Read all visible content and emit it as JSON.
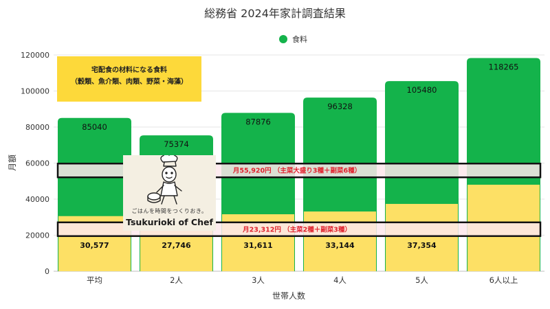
{
  "chart_data": {
    "type": "bar",
    "stacked": true,
    "title": "総務省 2024年家計調査結果",
    "xlabel": "世帯人数",
    "ylabel": "月額",
    "categories": [
      "平均",
      "2人",
      "3人",
      "4人",
      "5人",
      "6人以上"
    ],
    "ylim": [
      0,
      120000
    ],
    "yticks": [
      0,
      20000,
      40000,
      60000,
      80000,
      100000,
      120000
    ],
    "grid": true,
    "legend_position": "top-center",
    "series": [
      {
        "name": "",
        "color": "#fde065",
        "values": [
          30577,
          27746,
          31611,
          33144,
          37354,
          48000
        ],
        "labels": [
          "30,577",
          "27,746",
          "31,611",
          "33,144",
          "37,354",
          ""
        ]
      },
      {
        "name": "食料",
        "color": "#14b34b",
        "values": [
          54463,
          47628,
          56265,
          63184,
          68126,
          70265
        ],
        "totals": [
          85040,
          75374,
          87876,
          96328,
          105480,
          118265
        ]
      }
    ],
    "annotations": {
      "note_line1": "宅配食の材料になる食料",
      "note_line2": "（穀類、魚介類、肉類、野菜・海藻）",
      "band_upper": {
        "value": 55920,
        "text": "月55,920円 （主菜大盛り3種＋副菜6種）"
      },
      "band_lower": {
        "value": 23312,
        "text": "月23,312円 （主菜2種＋副菜3種）"
      }
    }
  },
  "logo": {
    "tagline": "ごはんを時間をつくりおき。",
    "name": "Tsukurioki of Chef"
  },
  "colors": {
    "green": "#14b34b",
    "yellow": "#fde065",
    "note_bg": "#fdd93a",
    "band_text": "#e0222d",
    "band_fill": "#fde8ec",
    "grid": "#e5e5e5"
  }
}
